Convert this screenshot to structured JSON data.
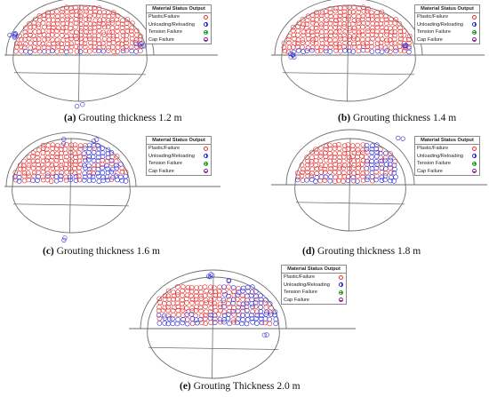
{
  "legend": {
    "title": "Material Status Output",
    "items": [
      {
        "label": "Plastic/Failure",
        "color": "#e63030"
      },
      {
        "label": "Unloading/Reloading",
        "color": "#2b2bd6"
      },
      {
        "label": "Tension Failure",
        "color": "#1e9e1e"
      },
      {
        "label": "Cap Failure",
        "color": "#8a1f8a"
      }
    ]
  },
  "panels": [
    {
      "tag": "(a)",
      "caption": "Grouting thickness 1.2 m"
    },
    {
      "tag": "(b)",
      "caption": "Grouting thickness 1.4 m"
    },
    {
      "tag": "(c)",
      "caption": "Grouting thickness 1.6 m"
    },
    {
      "tag": "(d)",
      "caption": "Grouting thickness 1.8 m"
    },
    {
      "tag": "(e)",
      "caption": "Grouting Thickness 2.0 m"
    }
  ],
  "colors": {
    "plastic": "#e63030",
    "unloading": "#2b2bd6",
    "outline": "#6e6e6e"
  }
}
